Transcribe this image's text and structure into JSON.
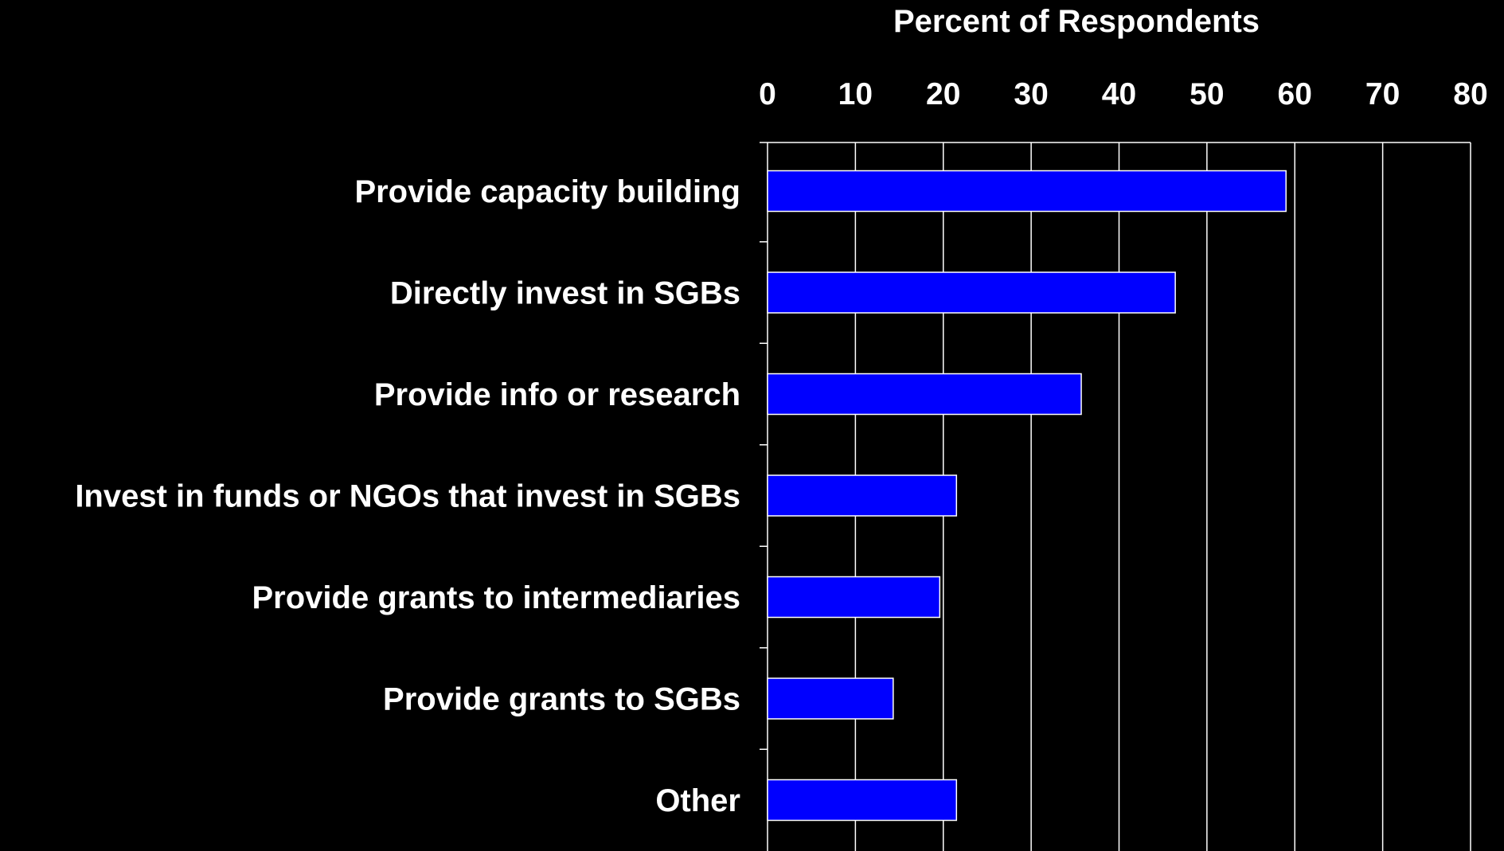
{
  "chart_data": {
    "type": "bar",
    "orientation": "horizontal",
    "title": "Percent of Respondents",
    "categories": [
      "Provide capacity building",
      "Directly invest in SGBs",
      "Provide info or research",
      "Invest in funds or NGOs that invest in SGBs",
      "Provide grants to intermediaries",
      "Provide grants to SGBs",
      "Other"
    ],
    "values": [
      59,
      46.4,
      35.7,
      21.5,
      19.6,
      14.3,
      21.5
    ],
    "xlim": [
      0,
      80
    ],
    "ticks": [
      0,
      10,
      20,
      30,
      40,
      50,
      60,
      70,
      80
    ],
    "tick_labels": [
      "0",
      "10",
      "20",
      "30",
      "40",
      "50",
      "60",
      "70",
      "80"
    ],
    "grid": true,
    "axis_position": "top",
    "colors": {
      "background": "#000000",
      "bar_fill": "#0000ff",
      "bar_stroke": "#ffffff",
      "grid": "#ffffff",
      "text": "#ffffff"
    }
  }
}
